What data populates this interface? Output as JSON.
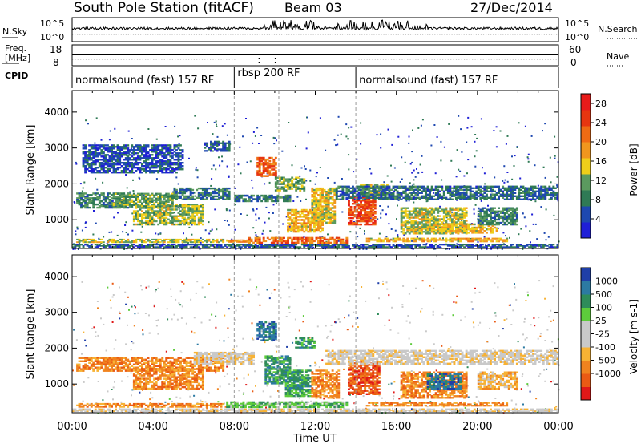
{
  "header": {
    "title": "South Pole Station (fitACF)",
    "beam": "Beam 03",
    "date": "27/Dec/2014"
  },
  "strip_panels": {
    "nsky": {
      "label": "N.Sky",
      "left_ticks": [
        "10^5",
        "10^0"
      ],
      "right_label": "N.Search",
      "right_ticks": [
        "10^5",
        "10^0"
      ]
    },
    "freq": {
      "label_line1": "Freq.",
      "label_line2": "[MHz]",
      "left_ticks": [
        "18",
        "8"
      ],
      "right_label": "Nave",
      "right_ticks": [
        "60",
        "0"
      ]
    },
    "cpid": {
      "label": "CPID",
      "segments": [
        {
          "text": "normalsound (fast) 157 RF",
          "start_hour": 0,
          "end_hour": 8
        },
        {
          "text": "rbsp 200 RF",
          "start_hour": 8,
          "end_hour": 14
        },
        {
          "text": "normalsound (fast) 157 RF",
          "start_hour": 14,
          "end_hour": 24
        }
      ]
    }
  },
  "x_axis": {
    "label": "Time UT",
    "ticks": [
      "00:00",
      "04:00",
      "08:00",
      "12:00",
      "16:00",
      "20:00",
      "00:00"
    ],
    "range_hours": [
      0,
      24
    ]
  },
  "colors": {
    "power": [
      "#1f1fd6",
      "#1e48b0",
      "#2f7a55",
      "#5b9a5f",
      "#efce1a",
      "#f0961e",
      "#ef6b14",
      "#e73610",
      "#e81b1a"
    ],
    "velocity": [
      "#e01818",
      "#ea5a14",
      "#f0831f",
      "#f7b234",
      "#c9c9c9",
      "#c9c9c9",
      "#5dcb3b",
      "#2e8c5a",
      "#2c7aa2",
      "#1f3fa8"
    ]
  },
  "chart_data": [
    {
      "type": "heatmap",
      "name": "power",
      "ylabel": "Slant Range [km]",
      "y_ticks": [
        "1000",
        "2000",
        "3000",
        "4000"
      ],
      "y_tick_values": [
        1000,
        2000,
        3000,
        4000
      ],
      "ylim": [
        200,
        4600
      ],
      "xlim": [
        0,
        24
      ],
      "colorbar": {
        "label": "Power [dB]",
        "ticks": [
          "28",
          "24",
          "20",
          "16",
          "12",
          "8",
          "4"
        ],
        "range": [
          0,
          30
        ]
      },
      "regions": [
        {
          "x0": 0.0,
          "x1": 24.0,
          "y0": 230,
          "y1": 320,
          "v": 6
        },
        {
          "x0": 0.2,
          "x1": 7.5,
          "y0": 360,
          "y1": 470,
          "v": 14
        },
        {
          "x0": 7.6,
          "x1": 8.8,
          "y0": 370,
          "y1": 450,
          "v": 20
        },
        {
          "x0": 8.7,
          "x1": 13.6,
          "y0": 340,
          "y1": 520,
          "v": 22
        },
        {
          "x0": 0.2,
          "x1": 2.8,
          "y0": 1320,
          "y1": 1760,
          "v": 9
        },
        {
          "x0": 2.0,
          "x1": 5.0,
          "y0": 1350,
          "y1": 1750,
          "v": 11
        },
        {
          "x0": 3.0,
          "x1": 6.5,
          "y0": 850,
          "y1": 1450,
          "v": 13
        },
        {
          "x0": 5.0,
          "x1": 7.8,
          "y0": 1550,
          "y1": 1900,
          "v": 8
        },
        {
          "x0": 8.0,
          "x1": 10.8,
          "y0": 1500,
          "y1": 1700,
          "v": 8
        },
        {
          "x0": 9.1,
          "x1": 10.1,
          "y0": 2200,
          "y1": 2750,
          "v": 23
        },
        {
          "x0": 10.0,
          "x1": 11.5,
          "y0": 1800,
          "y1": 2200,
          "v": 12
        },
        {
          "x0": 10.6,
          "x1": 12.4,
          "y0": 650,
          "y1": 1300,
          "v": 17
        },
        {
          "x0": 11.8,
          "x1": 13.0,
          "y0": 900,
          "y1": 1900,
          "v": 15
        },
        {
          "x0": 13.6,
          "x1": 15.0,
          "y0": 850,
          "y1": 1650,
          "v": 24
        },
        {
          "x0": 14.2,
          "x1": 15.6,
          "y0": 1650,
          "y1": 2000,
          "v": 13
        },
        {
          "x0": 13.0,
          "x1": 24.0,
          "y0": 1550,
          "y1": 1950,
          "v": 7
        },
        {
          "x0": 16.2,
          "x1": 19.5,
          "y0": 600,
          "y1": 1350,
          "v": 14
        },
        {
          "x0": 18.0,
          "x1": 21.0,
          "y0": 620,
          "y1": 900,
          "v": 16
        },
        {
          "x0": 14.5,
          "x1": 21.5,
          "y0": 380,
          "y1": 500,
          "v": 17
        },
        {
          "x0": 20.0,
          "x1": 22.0,
          "y0": 850,
          "y1": 1350,
          "v": 9
        },
        {
          "x0": 6.5,
          "x1": 7.8,
          "y0": 2900,
          "y1": 3200,
          "v": 6
        },
        {
          "x0": 0.5,
          "x1": 5.5,
          "y0": 2300,
          "y1": 3100,
          "v": 5
        }
      ]
    },
    {
      "type": "heatmap",
      "name": "velocity",
      "ylabel": "Slant Range [km]",
      "y_ticks": [
        "1000",
        "2000",
        "3000",
        "4000"
      ],
      "y_tick_values": [
        1000,
        2000,
        3000,
        4000
      ],
      "ylim": [
        200,
        4600
      ],
      "xlim": [
        0,
        24
      ],
      "colorbar": {
        "label": "Velocity [m s-1]",
        "ticks": [
          "1000",
          "500",
          "100",
          "25",
          "-25",
          "-100",
          "-500",
          "-1000"
        ]
      },
      "regions": [
        {
          "x0": 0.0,
          "x1": 24.0,
          "y0": 230,
          "y1": 320,
          "v": 4
        },
        {
          "x0": 0.2,
          "x1": 7.5,
          "y0": 350,
          "y1": 470,
          "v": 2
        },
        {
          "x0": 7.6,
          "x1": 13.6,
          "y0": 340,
          "y1": 520,
          "v": 6
        },
        {
          "x0": 0.2,
          "x1": 7.5,
          "y0": 1350,
          "y1": 1750,
          "v": 2
        },
        {
          "x0": 3.0,
          "x1": 6.5,
          "y0": 850,
          "y1": 1450,
          "v": 2
        },
        {
          "x0": 6.0,
          "x1": 9.0,
          "y0": 1550,
          "y1": 1900,
          "v": 4
        },
        {
          "x0": 9.1,
          "x1": 10.1,
          "y0": 2200,
          "y1": 2750,
          "v": 8
        },
        {
          "x0": 10.5,
          "x1": 11.8,
          "y0": 650,
          "y1": 1400,
          "v": 7
        },
        {
          "x0": 9.5,
          "x1": 10.8,
          "y0": 1000,
          "y1": 1800,
          "v": 7
        },
        {
          "x0": 11.8,
          "x1": 13.2,
          "y0": 600,
          "y1": 1400,
          "v": 2
        },
        {
          "x0": 13.6,
          "x1": 15.2,
          "y0": 700,
          "y1": 1650,
          "v": 1
        },
        {
          "x0": 12.5,
          "x1": 24.0,
          "y0": 1550,
          "y1": 1950,
          "v": 4
        },
        {
          "x0": 16.2,
          "x1": 19.5,
          "y0": 600,
          "y1": 1350,
          "v": 2
        },
        {
          "x0": 17.5,
          "x1": 19.2,
          "y0": 850,
          "y1": 1300,
          "v": 8
        },
        {
          "x0": 14.5,
          "x1": 21.5,
          "y0": 380,
          "y1": 500,
          "v": 2
        },
        {
          "x0": 20.0,
          "x1": 22.0,
          "y0": 850,
          "y1": 1350,
          "v": 3
        },
        {
          "x0": 11.0,
          "x1": 12.0,
          "y0": 2000,
          "y1": 2300,
          "v": 7
        }
      ]
    }
  ]
}
